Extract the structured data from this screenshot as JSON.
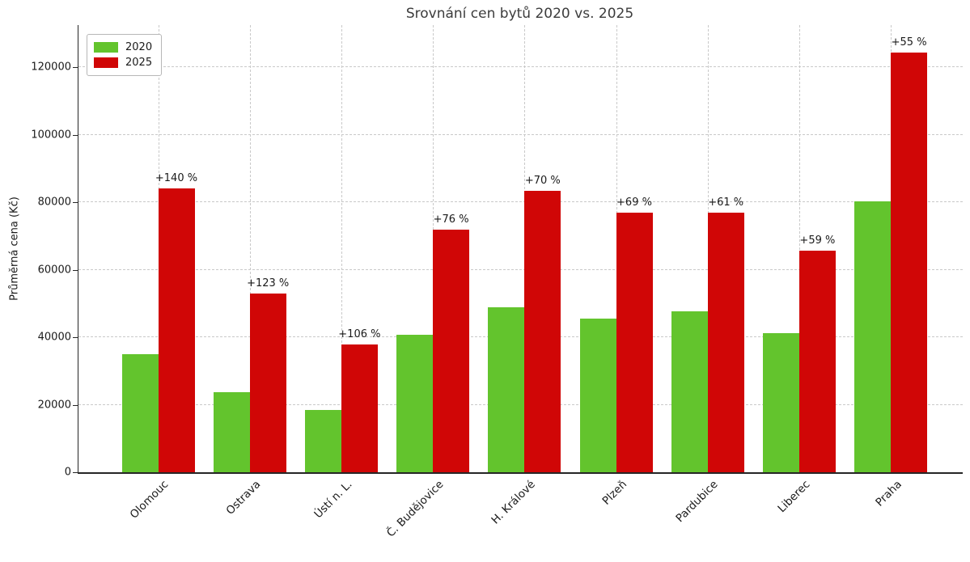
{
  "chart_data": {
    "type": "bar",
    "title": "Srovnání cen bytů 2020 vs. 2025",
    "xlabel": "",
    "ylabel": "Průměrná cena (Kč)",
    "categories": [
      "Olomouc",
      "Ostrava",
      "Ústí n. L.",
      "Č. Budějovice",
      "H. Králové",
      "Plzeň",
      "Pardubice",
      "Liberec",
      "Praha"
    ],
    "series": [
      {
        "name": "2020",
        "color": "#63c42d",
        "values": [
          35000,
          23700,
          18400,
          40800,
          49000,
          45600,
          47800,
          41300,
          80200
        ]
      },
      {
        "name": "2025",
        "color": "#d00606",
        "values": [
          84000,
          52900,
          37900,
          71800,
          83300,
          77000,
          77000,
          65700,
          124300
        ]
      }
    ],
    "annotations": [
      "+140 %",
      "+123 %",
      "+106 %",
      "+76 %",
      "+70 %",
      "+69 %",
      "+61 %",
      "+59 %",
      "+55 %"
    ],
    "yticks": [
      0,
      20000,
      40000,
      60000,
      80000,
      100000,
      120000
    ],
    "ylim": [
      0,
      132500
    ],
    "grid": "dashed, both axes",
    "legend_position": "upper left"
  }
}
